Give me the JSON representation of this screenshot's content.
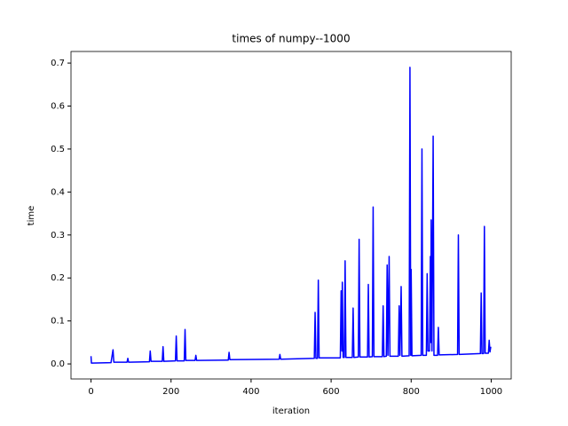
{
  "chart_data": {
    "type": "line",
    "title": "times of numpy--1000",
    "x_label": "iteration",
    "y_label": "time",
    "xlim": [
      -50,
      1050
    ],
    "ylim": [
      -0.035,
      0.727
    ],
    "xticks": [
      0,
      200,
      400,
      600,
      800,
      1000
    ],
    "yticks": [
      {
        "value": 0,
        "label": "0.0"
      },
      0.1,
      0.2,
      0.3,
      0.4,
      0.5,
      0.6,
      0.7
    ],
    "series": [
      {
        "color": "#0000ff",
        "x": [
          0,
          1,
          50,
          55,
          57,
          90,
          92,
          94,
          146,
          148,
          150,
          178,
          180,
          182,
          211,
          213,
          215,
          233,
          235,
          237,
          260,
          262,
          264,
          343,
          345,
          347,
          470,
          472,
          474,
          558,
          560,
          562,
          566,
          568,
          570,
          623,
          625,
          627,
          628,
          630,
          633,
          635,
          637,
          653,
          655,
          657,
          668,
          670,
          672,
          691,
          693,
          695,
          703,
          705,
          707,
          728,
          730,
          732,
          738,
          740,
          742,
          745,
          747,
          768,
          770,
          772,
          775,
          777,
          795,
          797,
          799,
          800,
          802,
          825,
          827,
          829,
          838,
          840,
          842,
          846,
          848,
          849,
          850,
          852,
          855,
          857,
          866,
          868,
          870,
          916,
          918,
          920,
          973,
          975,
          977,
          981,
          983,
          985,
          993,
          995,
          997,
          999
        ],
        "values": [
          0.018,
          0.002,
          0.003,
          0.033,
          0.004,
          0.004,
          0.013,
          0.004,
          0.005,
          0.03,
          0.006,
          0.006,
          0.04,
          0.006,
          0.007,
          0.065,
          0.007,
          0.007,
          0.08,
          0.008,
          0.008,
          0.02,
          0.008,
          0.009,
          0.027,
          0.01,
          0.011,
          0.022,
          0.011,
          0.013,
          0.12,
          0.013,
          0.013,
          0.195,
          0.014,
          0.014,
          0.17,
          0.03,
          0.19,
          0.015,
          0.015,
          0.24,
          0.015,
          0.015,
          0.13,
          0.015,
          0.016,
          0.29,
          0.016,
          0.016,
          0.185,
          0.016,
          0.017,
          0.365,
          0.017,
          0.017,
          0.135,
          0.017,
          0.018,
          0.23,
          0.02,
          0.25,
          0.018,
          0.018,
          0.135,
          0.02,
          0.18,
          0.018,
          0.019,
          0.69,
          0.02,
          0.22,
          0.019,
          0.02,
          0.5,
          0.02,
          0.02,
          0.21,
          0.03,
          0.03,
          0.25,
          0.05,
          0.335,
          0.03,
          0.53,
          0.02,
          0.02,
          0.085,
          0.021,
          0.022,
          0.3,
          0.022,
          0.024,
          0.165,
          0.024,
          0.024,
          0.32,
          0.025,
          0.025,
          0.055,
          0.028,
          0.04
        ]
      }
    ]
  }
}
